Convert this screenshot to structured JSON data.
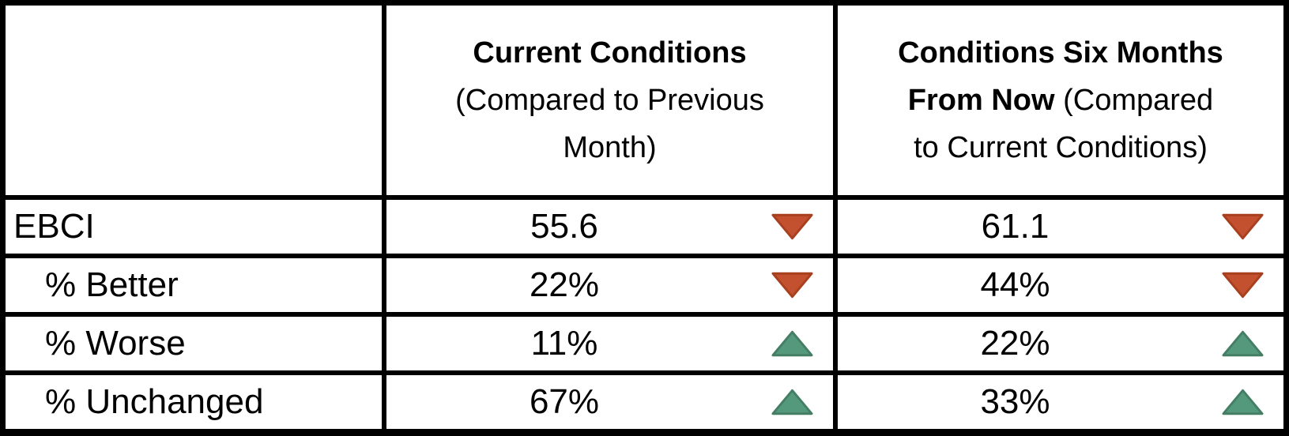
{
  "colors": {
    "trend_down": "#C3512F",
    "trend_down_stroke": "#A8401F",
    "trend_up": "#55997C",
    "trend_up_stroke": "#447F65",
    "grid": "#000000",
    "cell_bg": "#FFFFFF"
  },
  "table": {
    "corner": "",
    "columns": [
      {
        "full_title": "Current Conditions (Compared to Previous Month)",
        "lines": [
          [
            {
              "t": "Current Conditions",
              "bold": true
            }
          ],
          [
            {
              "t": "(Compared to Previous",
              "bold": false
            }
          ],
          [
            {
              "t": "Month)",
              "bold": false
            }
          ]
        ]
      },
      {
        "full_title": "Conditions Six Months From Now (Compared to Current Conditions)",
        "lines": [
          [
            {
              "t": "Conditions Six Months",
              "bold": true
            }
          ],
          [
            {
              "t": "From Now",
              "bold": true
            },
            {
              "t": " (Compared",
              "bold": false
            }
          ],
          [
            {
              "t": "to Current Conditions)",
              "bold": false
            }
          ]
        ]
      }
    ],
    "rows": [
      {
        "label": "EBCI",
        "indent": false,
        "cells": [
          {
            "value": "55.6",
            "trend": "down"
          },
          {
            "value": "61.1",
            "trend": "down"
          }
        ]
      },
      {
        "label": "% Better",
        "indent": true,
        "cells": [
          {
            "value": "22%",
            "trend": "down"
          },
          {
            "value": "44%",
            "trend": "down"
          }
        ]
      },
      {
        "label": "% Worse",
        "indent": true,
        "cells": [
          {
            "value": "11%",
            "trend": "up"
          },
          {
            "value": "22%",
            "trend": "up"
          }
        ]
      },
      {
        "label": "% Unchanged",
        "indent": true,
        "cells": [
          {
            "value": "67%",
            "trend": "up"
          },
          {
            "value": "33%",
            "trend": "up"
          }
        ]
      }
    ]
  }
}
